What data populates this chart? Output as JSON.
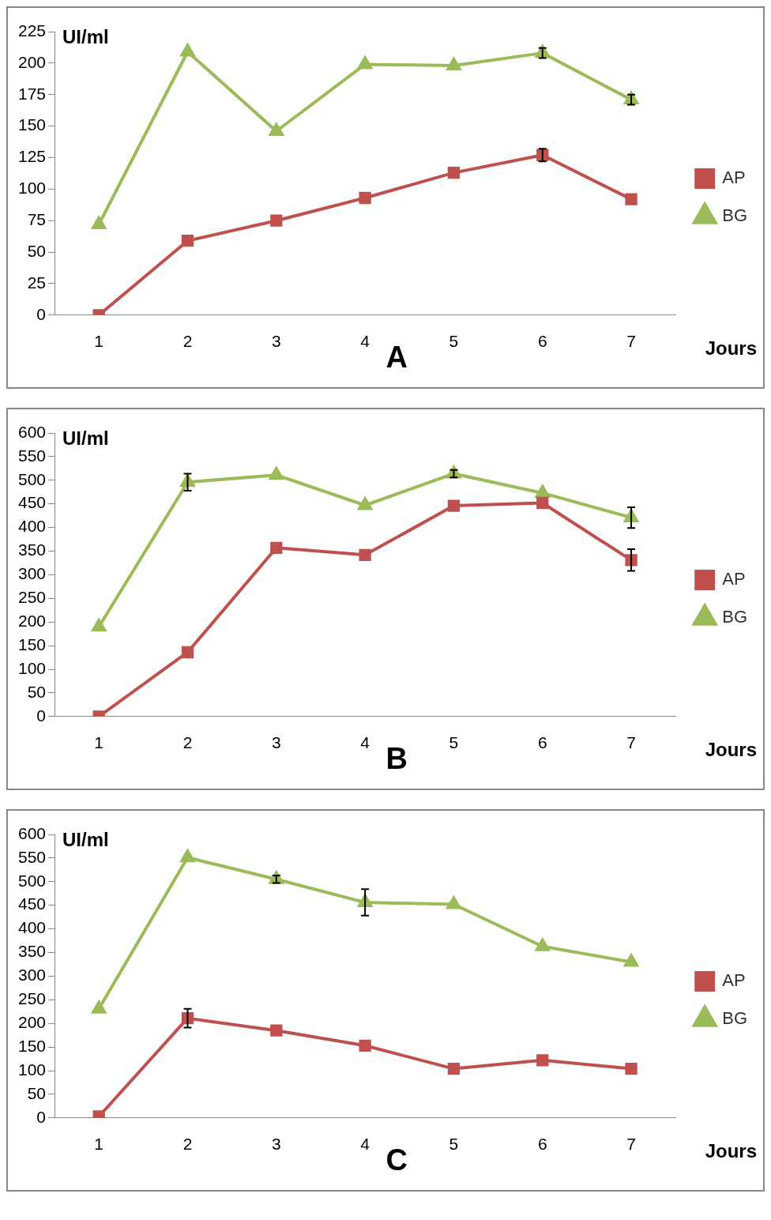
{
  "chart_data": [
    {
      "type": "line",
      "categories": [
        "1",
        "2",
        "3",
        "4",
        "5",
        "6",
        "7"
      ],
      "ylabel": "UI/ml",
      "xlabel": "Jours",
      "annotations": [
        "A"
      ],
      "ylim": [
        0,
        225
      ],
      "yticks": [
        0,
        25,
        50,
        75,
        100,
        125,
        150,
        175,
        200,
        225
      ],
      "grid": false,
      "legend": "right",
      "line_style": "solid",
      "series": [
        {
          "name": "AP",
          "color": "#c0504d",
          "marker": "square",
          "values": [
            0,
            59,
            75,
            93,
            113,
            127,
            92
          ],
          "errors": [
            null,
            null,
            null,
            null,
            null,
            5,
            null
          ]
        },
        {
          "name": "BG",
          "color": "#9bbb59",
          "marker": "triangle",
          "values": [
            72,
            209,
            146,
            199,
            198,
            208,
            171
          ],
          "errors": [
            null,
            null,
            null,
            null,
            null,
            4,
            4
          ]
        }
      ]
    },
    {
      "type": "line",
      "categories": [
        "1",
        "2",
        "3",
        "4",
        "5",
        "6",
        "7"
      ],
      "ylabel": "UI/ml",
      "xlabel": "Jours",
      "annotations": [
        "B"
      ],
      "ylim": [
        0,
        600
      ],
      "yticks": [
        0,
        50,
        100,
        150,
        200,
        250,
        300,
        350,
        400,
        450,
        500,
        550,
        600
      ],
      "grid": false,
      "legend": "right",
      "line_style": "solid",
      "series": [
        {
          "name": "AP",
          "color": "#c0504d",
          "marker": "square",
          "values": [
            0,
            136,
            357,
            342,
            446,
            452,
            331
          ],
          "errors": [
            null,
            null,
            null,
            null,
            null,
            null,
            23
          ]
        },
        {
          "name": "BG",
          "color": "#9bbb59",
          "marker": "triangle",
          "values": [
            190,
            496,
            511,
            447,
            514,
            473,
            421
          ],
          "errors": [
            null,
            18,
            null,
            null,
            8,
            null,
            22
          ]
        }
      ]
    },
    {
      "type": "line",
      "categories": [
        "1",
        "2",
        "3",
        "4",
        "5",
        "6",
        "7"
      ],
      "ylabel": "UI/ml",
      "xlabel": "Jours",
      "annotations": [
        "C"
      ],
      "ylim": [
        0,
        600
      ],
      "yticks": [
        0,
        50,
        100,
        150,
        200,
        250,
        300,
        350,
        400,
        450,
        500,
        550,
        600
      ],
      "grid": false,
      "legend": "right",
      "line_style": "solid",
      "series": [
        {
          "name": "AP",
          "color": "#c0504d",
          "marker": "square",
          "values": [
            3,
            211,
            185,
            153,
            104,
            122,
            104
          ],
          "errors": [
            null,
            20,
            null,
            null,
            null,
            null,
            null
          ]
        },
        {
          "name": "BG",
          "color": "#9bbb59",
          "marker": "triangle",
          "values": [
            231,
            551,
            505,
            456,
            452,
            363,
            330
          ],
          "errors": [
            null,
            null,
            8,
            28,
            null,
            null,
            null
          ]
        }
      ]
    }
  ]
}
